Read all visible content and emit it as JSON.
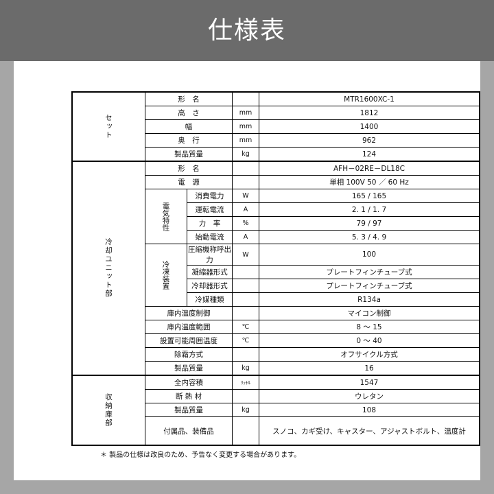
{
  "header": {
    "title": "仕様表"
  },
  "sections": {
    "set": "セット",
    "cooling": "冷却ユニット部",
    "storage": "収納庫部",
    "electrical": "電気特性",
    "refrigeration": "冷凍装置"
  },
  "rows": [
    {
      "label": "形　名",
      "unit": "",
      "value": "MTR1600XC-1"
    },
    {
      "label": "高　さ",
      "unit": "mm",
      "value": "1812"
    },
    {
      "label": "幅",
      "unit": "mm",
      "value": "1400"
    },
    {
      "label": "奥　行",
      "unit": "mm",
      "value": "962"
    },
    {
      "label": "製品質量",
      "unit": "kg",
      "value": "124"
    },
    {
      "label": "形　名",
      "unit": "",
      "value": "AFH－02RE－DL18C"
    },
    {
      "label": "電　源",
      "unit": "",
      "value": "単相 100V 50 ／ 60 Hz"
    },
    {
      "label": "消費電力",
      "unit": "W",
      "value": "165 / 165"
    },
    {
      "label": "運転電流",
      "unit": "A",
      "value": "2. 1 / 1. 7"
    },
    {
      "label": "力　率",
      "unit": "%",
      "value": "79 / 97"
    },
    {
      "label": "始動電流",
      "unit": "A",
      "value": "5. 3 / 4. 9"
    },
    {
      "label": "圧縮機称呼出力",
      "unit": "W",
      "value": "100"
    },
    {
      "label": "凝縮器形式",
      "unit": "",
      "value": "プレートフィンチューブ式"
    },
    {
      "label": "冷却器形式",
      "unit": "",
      "value": "プレートフィンチューブ式"
    },
    {
      "label": "冷媒種類",
      "unit": "",
      "value": "R134a"
    },
    {
      "label": "庫内温度制御",
      "unit": "",
      "value": "マイコン制御"
    },
    {
      "label": "庫内温度範囲",
      "unit": "℃",
      "value": "8 ～ 15"
    },
    {
      "label": "設置可能周囲温度",
      "unit": "℃",
      "value": "0 ～ 40"
    },
    {
      "label": "除霜方式",
      "unit": "",
      "value": "オフサイクル方式"
    },
    {
      "label": "製品質量",
      "unit": "kg",
      "value": "16"
    },
    {
      "label": "全内容積",
      "unit": "ﾘｯﾄﾙ",
      "value": "1547"
    },
    {
      "label": "断 熱 材",
      "unit": "",
      "value": "ウレタン"
    },
    {
      "label": "製品質量",
      "unit": "kg",
      "value": "108"
    },
    {
      "label": "付属品、装備品",
      "unit": "",
      "value": "スノコ、カギ受け、キャスター、アジャストボルト、温度計"
    }
  ],
  "note": "＊ 製品の仕様は改良のため、予告なく変更する場合があります。"
}
